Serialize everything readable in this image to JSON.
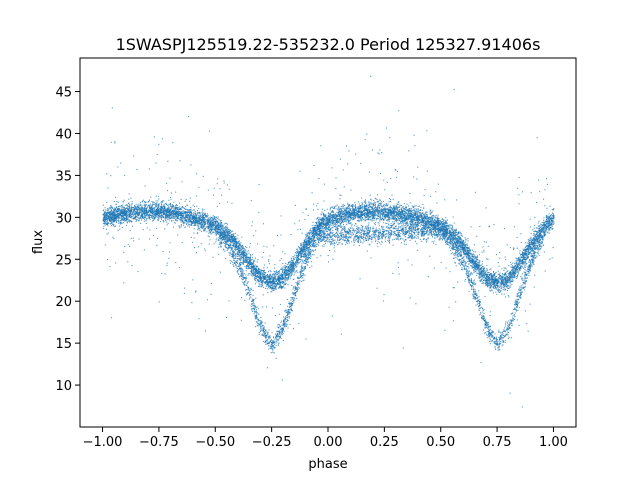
{
  "chart_data": {
    "type": "scatter",
    "title": "1SWASPJ125519.22-535232.0 Period 125327.91406s",
    "xlabel": "phase",
    "ylabel": "flux",
    "xlim": [
      -1.1,
      1.1
    ],
    "ylim": [
      5.0,
      49.0
    ],
    "xticks": [
      -1.0,
      -0.75,
      -0.5,
      -0.25,
      0.0,
      0.25,
      0.5,
      0.75,
      1.0
    ],
    "xtick_labels": [
      "−1.00",
      "−0.75",
      "−0.50",
      "−0.25",
      "0.00",
      "0.25",
      "0.50",
      "0.75",
      "1.00"
    ],
    "yticks": [
      10,
      15,
      20,
      25,
      30,
      35,
      40,
      45
    ],
    "ytick_labels": [
      "10",
      "15",
      "20",
      "25",
      "30",
      "35",
      "40",
      "45"
    ],
    "grid": false,
    "marker_color": "#1f77b4",
    "series": [
      {
        "description_of_branch": "upper envelope",
        "x": [
          -1.0,
          -0.9,
          -0.8,
          -0.7,
          -0.6,
          -0.5,
          -0.45,
          -0.4,
          -0.35,
          -0.3,
          -0.25,
          -0.2,
          -0.15,
          -0.1,
          -0.05,
          0.0,
          0.1,
          0.2,
          0.3,
          0.4,
          0.5,
          0.55,
          0.6,
          0.65,
          0.7,
          0.75,
          0.8,
          0.85,
          0.9,
          0.95,
          1.0
        ],
        "values": [
          30.0,
          30.5,
          30.8,
          30.7,
          30.0,
          29.0,
          28.0,
          26.5,
          24.5,
          22.8,
          22.3,
          22.8,
          24.5,
          26.8,
          28.8,
          29.8,
          30.5,
          30.8,
          30.6,
          30.0,
          29.0,
          28.0,
          26.5,
          24.5,
          22.8,
          22.3,
          22.8,
          24.5,
          26.8,
          28.6,
          30.0
        ]
      },
      {
        "description_of_branch": "lower envelope",
        "x": [
          -0.5,
          -0.45,
          -0.4,
          -0.35,
          -0.3,
          -0.25,
          -0.2,
          -0.15,
          -0.1,
          -0.05,
          0.5,
          0.55,
          0.6,
          0.65,
          0.7,
          0.75,
          0.8,
          0.85,
          0.9,
          0.95
        ],
        "values": [
          28.5,
          27.0,
          24.5,
          21.0,
          17.0,
          14.8,
          17.0,
          21.0,
          24.8,
          27.8,
          28.5,
          27.0,
          24.5,
          21.0,
          17.0,
          14.8,
          17.0,
          21.0,
          24.8,
          27.8
        ]
      }
    ]
  }
}
